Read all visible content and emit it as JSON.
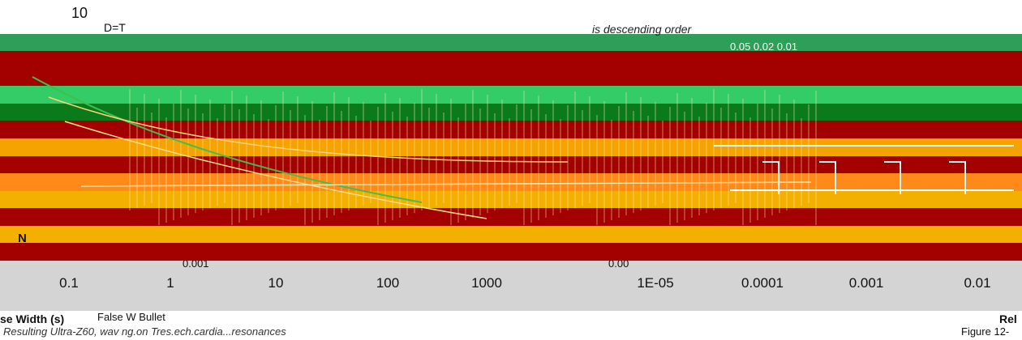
{
  "chart_data": {
    "type": "line",
    "top_label": "10",
    "axis_label_n": "N",
    "x_ticks": [
      "0.1",
      "1",
      "10",
      "100",
      "1000",
      "1E-05",
      "0.0001",
      "0.001",
      "0.01"
    ],
    "annotations": {
      "d_ratio": "D=T",
      "descending": "is descending order",
      "legend_values": "0.05  0.02  0.01",
      "small_value": "0.001",
      "small_value_2": "0.00",
      "x_label_left": "se Width (s)",
      "false_wave": "False W Bullet",
      "caption": "Resulting Ultra-Z60, wav ng.on Tres.ech.cardia...resonances",
      "figure_tag": "Figure 12-",
      "right_tag": "Rel"
    },
    "bands": [
      {
        "color": "#ffffff"
      },
      {
        "color": "#2e9e58"
      },
      {
        "color": "#a30000"
      },
      {
        "color": "#a30000"
      },
      {
        "color": "#33cc66"
      },
      {
        "color": "#0b7a1b"
      },
      {
        "color": "#a30000"
      },
      {
        "color": "#f4a300"
      },
      {
        "color": "#a30000"
      },
      {
        "color": "#ff8a1a"
      },
      {
        "color": "#f4b000"
      },
      {
        "color": "#a30000"
      },
      {
        "color": "#f4b000"
      },
      {
        "color": "#a30000"
      }
    ]
  }
}
